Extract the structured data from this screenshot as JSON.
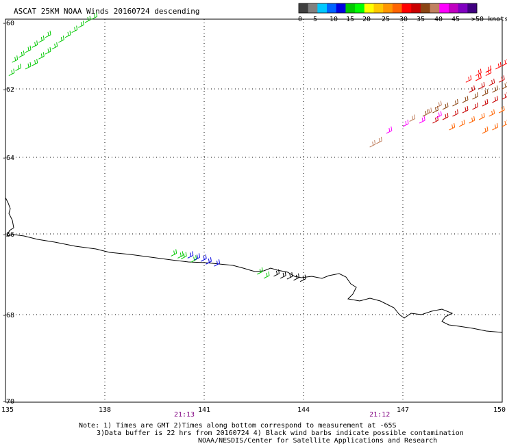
{
  "title": "ASCAT 25KM NOAA Winds 20160724 descending",
  "legend": {
    "colors": [
      "#404040",
      "#808080",
      "#00c8ff",
      "#0064ff",
      "#0000e0",
      "#00c800",
      "#00ff00",
      "#ffff00",
      "#ffc800",
      "#ff9600",
      "#ff6400",
      "#ff0000",
      "#c80000",
      "#8b4513",
      "#c08060",
      "#ff00ff",
      "#c000c0",
      "#8000c0",
      "#400080"
    ],
    "labels": [
      "0",
      "5",
      "10",
      "15",
      "20",
      "25",
      "30",
      "35",
      "40",
      "45",
      ">50 knots"
    ]
  },
  "map": {
    "lon_range": [
      135,
      150
    ],
    "lat_range": [
      -70,
      -60
    ],
    "lon_labels": [
      "135",
      "138",
      "141",
      "144",
      "147",
      "150"
    ],
    "lat_labels": [
      "-60",
      "-62",
      "-64",
      "-66",
      "-68",
      "-70"
    ],
    "time_labels": [
      {
        "text": "21:13",
        "lon": 140.4
      },
      {
        "text": "21:12",
        "lon": 146.3
      }
    ],
    "barb_groups": [
      {
        "color": "#00c800",
        "barbs": [
          [
            135.6,
            -61.4
          ],
          [
            135.8,
            -61.3
          ],
          [
            136.0,
            -61.1
          ],
          [
            136.2,
            -60.95
          ],
          [
            136.4,
            -60.8
          ],
          [
            136.6,
            -60.6
          ],
          [
            136.8,
            -60.45
          ],
          [
            137.0,
            -60.3
          ],
          [
            137.2,
            -60.15
          ],
          [
            137.4,
            -60.0
          ],
          [
            137.6,
            -59.9
          ],
          [
            135.2,
            -61.2
          ],
          [
            135.4,
            -61.05
          ],
          [
            135.6,
            -60.9
          ],
          [
            135.8,
            -60.75
          ],
          [
            136.0,
            -60.6
          ],
          [
            136.2,
            -60.45
          ],
          [
            135.1,
            -61.6
          ],
          [
            135.3,
            -61.45
          ]
        ]
      },
      {
        "color": "#00c800",
        "barbs": [
          [
            140.2,
            -66.6
          ],
          [
            140.3,
            -66.62
          ],
          [
            142.6,
            -67.0
          ],
          [
            142.8,
            -67.1
          ],
          [
            140.6,
            -66.7
          ],
          [
            140.0,
            -66.55
          ]
        ]
      },
      {
        "color": "#0000e0",
        "barbs": [
          [
            140.5,
            -66.6
          ],
          [
            140.7,
            -66.65
          ],
          [
            140.9,
            -66.68
          ],
          [
            141.05,
            -66.75
          ],
          [
            141.3,
            -66.8
          ]
        ]
      },
      {
        "color": "#000000",
        "barbs": [
          [
            143.1,
            -67.05
          ],
          [
            143.3,
            -67.1
          ],
          [
            143.5,
            -67.12
          ],
          [
            143.7,
            -67.15
          ],
          [
            143.9,
            -67.18
          ]
        ]
      },
      {
        "color": "#8b4513",
        "barbs": [
          [
            147.6,
            -62.8
          ],
          [
            147.9,
            -62.7
          ],
          [
            148.2,
            -62.6
          ],
          [
            148.5,
            -62.5
          ],
          [
            148.8,
            -62.4
          ],
          [
            149.1,
            -62.3
          ],
          [
            149.4,
            -62.2
          ],
          [
            149.7,
            -62.1
          ],
          [
            150.0,
            -62.0
          ]
        ]
      },
      {
        "color": "#c80000",
        "barbs": [
          [
            147.9,
            -63.0
          ],
          [
            148.2,
            -62.9
          ],
          [
            148.5,
            -62.8
          ],
          [
            148.8,
            -62.7
          ],
          [
            149.1,
            -62.6
          ],
          [
            149.4,
            -62.5
          ],
          [
            149.7,
            -62.4
          ],
          [
            150.0,
            -62.3
          ],
          [
            149.0,
            -62.1
          ],
          [
            149.3,
            -62.0
          ],
          [
            149.6,
            -61.9
          ],
          [
            149.9,
            -61.8
          ]
        ]
      },
      {
        "color": "#ff6400",
        "barbs": [
          [
            148.4,
            -63.2
          ],
          [
            148.7,
            -63.1
          ],
          [
            149.0,
            -63.0
          ],
          [
            149.3,
            -62.9
          ],
          [
            149.6,
            -62.8
          ],
          [
            149.9,
            -62.7
          ],
          [
            149.4,
            -63.3
          ],
          [
            149.7,
            -63.2
          ],
          [
            150.0,
            -63.1
          ]
        ]
      },
      {
        "color": "#ff0000",
        "barbs": [
          [
            149.2,
            -61.6
          ],
          [
            149.5,
            -61.5
          ],
          [
            149.8,
            -61.4
          ],
          [
            150.0,
            -61.3
          ],
          [
            148.9,
            -61.8
          ],
          [
            149.2,
            -61.75
          ],
          [
            149.5,
            -61.6
          ]
        ]
      },
      {
        "color": "#ff00ff",
        "barbs": [
          [
            146.5,
            -63.3
          ],
          [
            147.0,
            -63.1
          ],
          [
            147.5,
            -63.0
          ],
          [
            148.0,
            -62.85
          ]
        ]
      },
      {
        "color": "#c08060",
        "barbs": [
          [
            146.0,
            -63.7
          ],
          [
            146.2,
            -63.6
          ],
          [
            147.2,
            -62.95
          ],
          [
            147.7,
            -62.75
          ],
          [
            148.0,
            -62.55
          ]
        ]
      }
    ]
  },
  "notes": [
    "Note: 1) Times are GMT 2)Times along bottom correspond to measurement at -65S",
    "3)Data buffer is 22 hrs from 20160724 4) Black wind barbs indicate possible contamination",
    "NOAA/NESDIS/Center for Satellite Applications and Research"
  ]
}
